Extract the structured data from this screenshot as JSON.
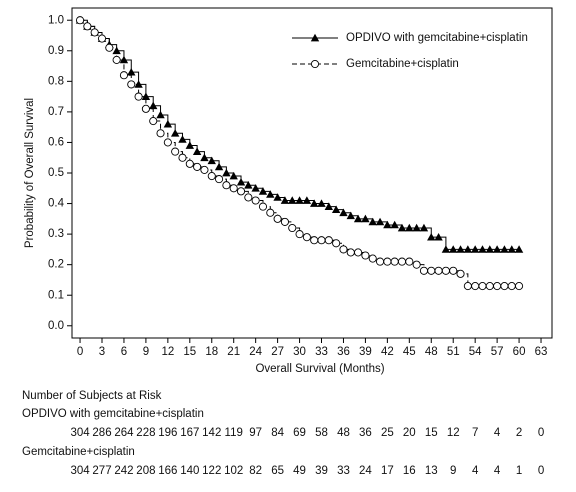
{
  "chart_data": {
    "type": "line",
    "step": true,
    "xlabel": "Overall Survival (Months)",
    "ylabel": "Probability of Overall Survival",
    "x": [
      0,
      1,
      2,
      3,
      4,
      5,
      6,
      7,
      8,
      9,
      10,
      11,
      12,
      13,
      14,
      15,
      16,
      17,
      18,
      19,
      20,
      21,
      22,
      23,
      24,
      25,
      26,
      27,
      28,
      29,
      30,
      31,
      32,
      33,
      34,
      35,
      36,
      37,
      38,
      39,
      40,
      41,
      42,
      43,
      44,
      45,
      46,
      47,
      48,
      49,
      50,
      51,
      52,
      53,
      54,
      55,
      56,
      57,
      58,
      59,
      60
    ],
    "series": [
      {
        "name": "OPDIVO with gemcitabine+cisplatin",
        "color": "#000000",
        "marker": "triangle",
        "line_style": "solid",
        "values": [
          1.0,
          0.98,
          0.96,
          0.94,
          0.92,
          0.9,
          0.87,
          0.83,
          0.79,
          0.75,
          0.72,
          0.69,
          0.66,
          0.63,
          0.61,
          0.59,
          0.57,
          0.55,
          0.54,
          0.52,
          0.5,
          0.49,
          0.47,
          0.46,
          0.45,
          0.44,
          0.43,
          0.42,
          0.41,
          0.41,
          0.41,
          0.41,
          0.4,
          0.4,
          0.39,
          0.38,
          0.37,
          0.36,
          0.35,
          0.35,
          0.34,
          0.34,
          0.33,
          0.33,
          0.32,
          0.32,
          0.32,
          0.32,
          0.29,
          0.29,
          0.25,
          0.25,
          0.25,
          0.25,
          0.25,
          0.25,
          0.25,
          0.25,
          0.25,
          0.25,
          0.25
        ]
      },
      {
        "name": "Gemcitabine+cisplatin",
        "color": "#000000",
        "marker": "circle",
        "line_style": "dashed",
        "values": [
          1.0,
          0.98,
          0.96,
          0.94,
          0.91,
          0.87,
          0.82,
          0.79,
          0.75,
          0.71,
          0.67,
          0.63,
          0.6,
          0.57,
          0.55,
          0.53,
          0.52,
          0.51,
          0.49,
          0.48,
          0.46,
          0.45,
          0.44,
          0.42,
          0.41,
          0.39,
          0.37,
          0.35,
          0.34,
          0.32,
          0.3,
          0.29,
          0.28,
          0.28,
          0.28,
          0.27,
          0.25,
          0.24,
          0.24,
          0.23,
          0.22,
          0.21,
          0.21,
          0.21,
          0.21,
          0.21,
          0.2,
          0.18,
          0.18,
          0.18,
          0.18,
          0.18,
          0.17,
          0.13,
          0.13,
          0.13,
          0.13,
          0.13,
          0.13,
          0.13,
          0.13
        ]
      }
    ],
    "xlim": [
      -1.1,
      64.5
    ],
    "ylim": [
      -0.04,
      1.04
    ],
    "xticks": [
      0,
      3,
      6,
      9,
      12,
      15,
      18,
      21,
      24,
      27,
      30,
      33,
      36,
      39,
      42,
      45,
      48,
      51,
      54,
      57,
      60,
      63
    ],
    "yticks": [
      {
        "value": 0,
        "label": "0.0"
      },
      0.1,
      0.2,
      0.3,
      0.4,
      0.5,
      0.6,
      0.7,
      0.8,
      0.9,
      {
        "value": 1,
        "label": "1.0"
      }
    ],
    "legend": "upper right",
    "risk_table": {
      "title": "Number of Subjects at Risk",
      "rows": [
        {
          "label": "OPDIVO with gemcitabine+cisplatin",
          "values": [
            304,
            286,
            264,
            228,
            196,
            167,
            142,
            119,
            97,
            84,
            69,
            58,
            48,
            36,
            25,
            20,
            15,
            12,
            7,
            4,
            2,
            0
          ]
        },
        {
          "label": "Gemcitabine+cisplatin",
          "values": [
            304,
            277,
            242,
            208,
            166,
            140,
            122,
            102,
            82,
            65,
            49,
            39,
            33,
            24,
            17,
            16,
            13,
            9,
            4,
            4,
            1,
            0
          ]
        }
      ]
    }
  }
}
